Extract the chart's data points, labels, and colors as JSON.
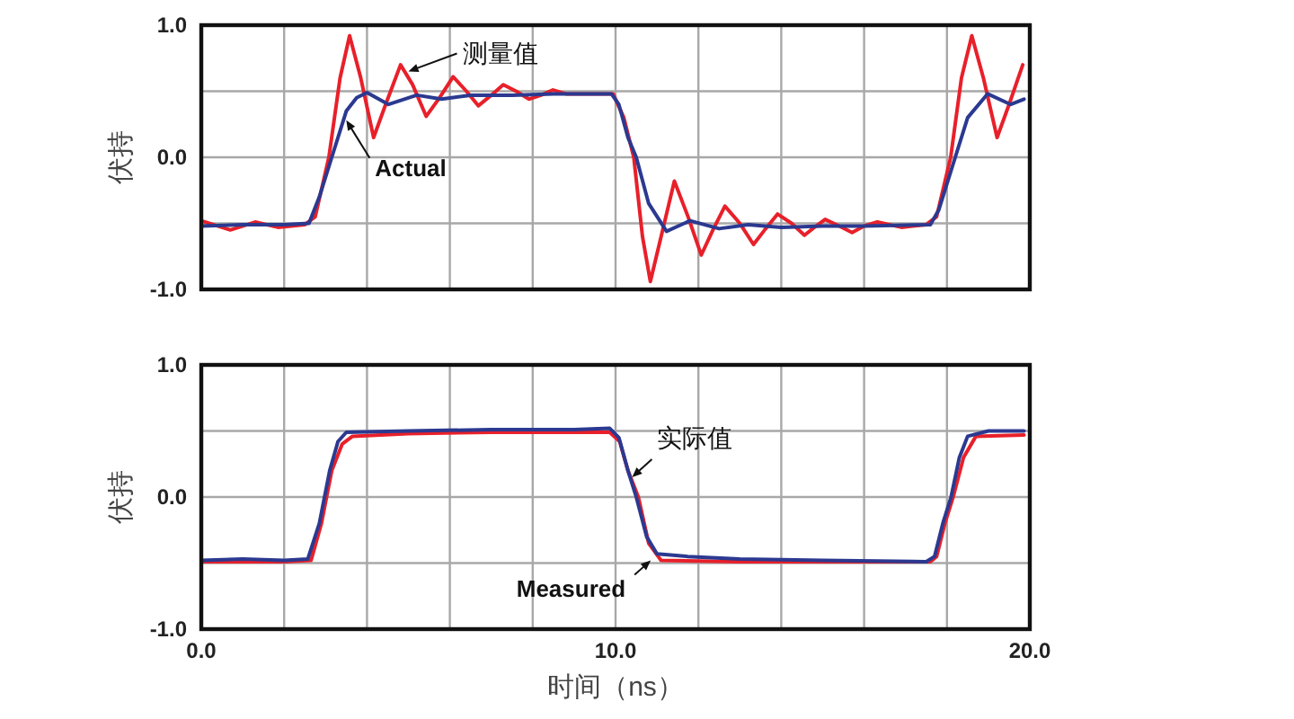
{
  "chart_data": [
    {
      "type": "line",
      "ylabel": "伏持",
      "xlim": [
        0,
        20
      ],
      "ylim": [
        -1,
        1
      ],
      "grid": true,
      "tick_labels": "y",
      "xticks": [
        {
          "value": 0,
          "label": null
        },
        {
          "value": 2,
          "label": null
        },
        {
          "value": 4,
          "label": null
        },
        {
          "value": 6,
          "label": null
        },
        {
          "value": 8,
          "label": null
        },
        {
          "value": 10,
          "label": null
        },
        {
          "value": 12,
          "label": null
        },
        {
          "value": 14,
          "label": null
        },
        {
          "value": 16,
          "label": null
        },
        {
          "value": 18,
          "label": null
        },
        {
          "value": 20,
          "label": null
        }
      ],
      "yticks": [
        {
          "value": -1,
          "label": "-1.0"
        },
        {
          "value": -0.5,
          "label": null
        },
        {
          "value": 0,
          "label": "0.0"
        },
        {
          "value": 0.5,
          "label": null
        },
        {
          "value": 1,
          "label": "1.0"
        }
      ],
      "series": [
        {
          "color": "#e8202a",
          "x": [
            0,
            0.7,
            1.3,
            1.85,
            2.5,
            2.75,
            3.08,
            3.35,
            3.58,
            3.85,
            4.16,
            4.45,
            4.81,
            5.1,
            5.43,
            5.75,
            6.08,
            6.4,
            6.69,
            7.0,
            7.29,
            7.6,
            7.91,
            8.2,
            8.49,
            8.8,
            9.3,
            9.94,
            10.2,
            10.44,
            10.65,
            10.84,
            11.1,
            11.42,
            11.75,
            12.07,
            12.35,
            12.64,
            13.0,
            13.33,
            13.6,
            13.91,
            14.25,
            14.56,
            14.8,
            15.06,
            15.4,
            15.71,
            16.0,
            16.32,
            16.9,
            17.5,
            17.75,
            18.09,
            18.35,
            18.6,
            18.88,
            19.21,
            19.5,
            19.83
          ],
          "values": [
            -0.48,
            -0.55,
            -0.49,
            -0.53,
            -0.51,
            -0.45,
            0.0,
            0.6,
            0.92,
            0.6,
            0.15,
            0.4,
            0.7,
            0.55,
            0.31,
            0.45,
            0.61,
            0.5,
            0.39,
            0.47,
            0.55,
            0.5,
            0.44,
            0.47,
            0.51,
            0.48,
            0.48,
            0.48,
            0.3,
            0.0,
            -0.6,
            -0.94,
            -0.6,
            -0.18,
            -0.45,
            -0.74,
            -0.55,
            -0.37,
            -0.5,
            -0.66,
            -0.55,
            -0.43,
            -0.5,
            -0.59,
            -0.53,
            -0.47,
            -0.52,
            -0.57,
            -0.52,
            -0.49,
            -0.53,
            -0.51,
            -0.45,
            0.0,
            0.6,
            0.92,
            0.6,
            0.15,
            0.4,
            0.7
          ]
        },
        {
          "color": "#2b3990",
          "x": [
            0,
            1,
            2,
            2.6,
            2.85,
            3.15,
            3.5,
            3.75,
            4.0,
            4.52,
            5.2,
            5.8,
            6.5,
            7.5,
            8.5,
            9.9,
            10.08,
            10.3,
            10.5,
            10.8,
            11.23,
            11.8,
            12.5,
            13.2,
            14,
            15,
            16,
            17.6,
            17.8,
            18.2,
            18.5,
            18.98,
            19.54,
            19.86
          ],
          "values": [
            -0.52,
            -0.51,
            -0.51,
            -0.5,
            -0.3,
            0.0,
            0.35,
            0.45,
            0.49,
            0.4,
            0.47,
            0.44,
            0.47,
            0.47,
            0.48,
            0.48,
            0.4,
            0.15,
            0.0,
            -0.35,
            -0.56,
            -0.48,
            -0.54,
            -0.51,
            -0.53,
            -0.52,
            -0.52,
            -0.51,
            -0.4,
            0.0,
            0.3,
            0.48,
            0.4,
            0.44
          ]
        }
      ],
      "annotations": [
        {
          "text": "测量值",
          "x": 5.0,
          "y": 0.65
        },
        {
          "text": "Actual",
          "x": 3.5,
          "y": 0.28
        }
      ]
    },
    {
      "type": "line",
      "ylabel": "伏持",
      "xlabel": "时间（ns）",
      "xlim": [
        0,
        20
      ],
      "ylim": [
        -1,
        1
      ],
      "grid": true,
      "xticks": [
        {
          "value": 0,
          "label": "0.0"
        },
        {
          "value": 2,
          "label": null
        },
        {
          "value": 4,
          "label": null
        },
        {
          "value": 6,
          "label": null
        },
        {
          "value": 8,
          "label": null
        },
        {
          "value": 10,
          "label": "10.0"
        },
        {
          "value": 12,
          "label": null
        },
        {
          "value": 14,
          "label": null
        },
        {
          "value": 16,
          "label": null
        },
        {
          "value": 18,
          "label": null
        },
        {
          "value": 20,
          "label": "20.0"
        }
      ],
      "yticks": [
        {
          "value": -1,
          "label": "-1.0"
        },
        {
          "value": -0.5,
          "label": null
        },
        {
          "value": 0,
          "label": "0.0"
        },
        {
          "value": 0.5,
          "label": null
        },
        {
          "value": 1,
          "label": "1.0"
        }
      ],
      "series": [
        {
          "color": "#e8202a",
          "x": [
            0,
            2,
            2.65,
            2.9,
            3.15,
            3.4,
            3.65,
            5,
            7,
            9.86,
            10.1,
            10.3,
            10.55,
            10.8,
            11.1,
            13,
            17.6,
            17.75,
            17.95,
            18.15,
            18.4,
            18.7,
            19.86
          ],
          "values": [
            -0.49,
            -0.49,
            -0.48,
            -0.2,
            0.2,
            0.4,
            0.46,
            0.48,
            0.49,
            0.49,
            0.42,
            0.2,
            0.0,
            -0.35,
            -0.48,
            -0.49,
            -0.49,
            -0.45,
            -0.2,
            0.0,
            0.3,
            0.46,
            0.47
          ]
        },
        {
          "color": "#2b3990",
          "x": [
            0,
            1,
            2,
            2.57,
            2.85,
            3.1,
            3.3,
            3.5,
            5,
            7,
            9,
            9.86,
            10.08,
            10.3,
            10.5,
            10.75,
            11.0,
            11.74,
            13,
            15,
            17.5,
            17.7,
            17.9,
            18.1,
            18.3,
            18.5,
            19,
            19.86
          ],
          "values": [
            -0.48,
            -0.47,
            -0.48,
            -0.47,
            -0.2,
            0.2,
            0.42,
            0.49,
            0.5,
            0.51,
            0.51,
            0.52,
            0.45,
            0.2,
            0.0,
            -0.3,
            -0.43,
            -0.45,
            -0.47,
            -0.48,
            -0.49,
            -0.45,
            -0.2,
            0.0,
            0.3,
            0.46,
            0.5,
            0.5
          ]
        }
      ],
      "annotations": [
        {
          "text": "实际值",
          "x": 10.4,
          "y": 0.15
        },
        {
          "text": "Measured",
          "x": 10.85,
          "y": -0.48
        }
      ]
    }
  ]
}
